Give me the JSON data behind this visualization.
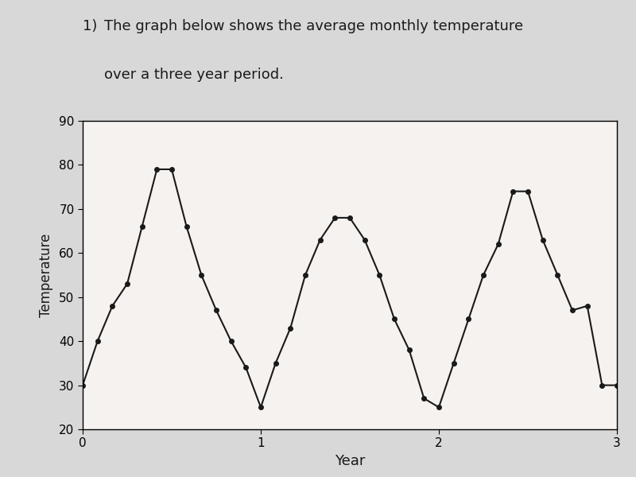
{
  "x": [
    0,
    0.0833,
    0.1667,
    0.25,
    0.3333,
    0.4167,
    0.5,
    0.5833,
    0.6667,
    0.75,
    0.8333,
    0.9167,
    1.0,
    1.0833,
    1.1667,
    1.25,
    1.3333,
    1.4167,
    1.5,
    1.5833,
    1.6667,
    1.75,
    1.8333,
    1.9167,
    2.0,
    2.0833,
    2.1667,
    2.25,
    2.3333,
    2.4167,
    2.5,
    2.5833,
    2.6667,
    2.75,
    2.8333,
    2.9167,
    3.0
  ],
  "y": [
    30,
    40,
    48,
    53,
    66,
    79,
    79,
    66,
    55,
    47,
    40,
    34,
    25,
    35,
    43,
    55,
    63,
    68,
    68,
    63,
    55,
    45,
    38,
    27,
    25,
    35,
    45,
    55,
    62,
    74,
    74,
    63,
    55,
    47,
    48,
    30,
    30
  ],
  "header_num": "1)",
  "header_text": "  The graph below shows the average monthly temperature",
  "header_text2": "  over a three year period.",
  "xlabel": "Year",
  "ylabel": "Temperature",
  "xlim": [
    0,
    3
  ],
  "ylim": [
    20,
    90
  ],
  "xticks": [
    0,
    1,
    2,
    3
  ],
  "yticks": [
    20,
    30,
    40,
    50,
    60,
    70,
    80,
    90
  ],
  "line_color": "#1a1a1a",
  "marker": "o",
  "marker_size": 4,
  "bg_color": "#d8d8d8",
  "plot_bg_color": "#f5f2f0",
  "text_color": "#1a1a1a"
}
